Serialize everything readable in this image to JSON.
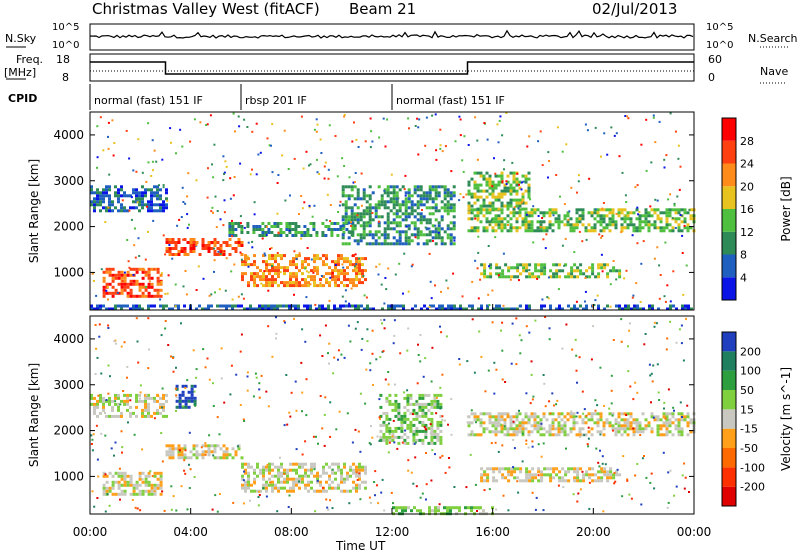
{
  "header": {
    "station": "Christmas Valley West (fitACF)",
    "beam": "Beam 21",
    "date": "02/Jul/2013"
  },
  "labels": {
    "nsky": "N.Sky",
    "nsearch": "N.Search",
    "freq": "Freq.",
    "freq_unit": "[MHz]",
    "nave": "Nave",
    "cpid": "CPID",
    "nsky_ticks": [
      "10^5",
      "10^0"
    ],
    "freq_ticks": [
      "18",
      "8"
    ],
    "nave_ticks": [
      "60",
      "0"
    ]
  },
  "cpid_segments": [
    {
      "name": "normal (fast) 151 IF"
    },
    {
      "name": "rbsp 201 IF"
    },
    {
      "name": "normal (fast) 151 IF"
    }
  ],
  "chart_data": [
    {
      "type": "heatmap",
      "title": "",
      "xlabel": "Time UT",
      "ylabel": "Slant Range [km]",
      "x_ticks": [
        "00:00",
        "04:00",
        "08:00",
        "12:00",
        "16:00",
        "20:00",
        "00:00"
      ],
      "y_ticks": [
        "1000",
        "2000",
        "3000",
        "4000"
      ],
      "xlim_hours": [
        0,
        24
      ],
      "ylim_km": [
        180,
        4500
      ],
      "colorbar": {
        "label": "Power [dB]",
        "ticks": [
          "4",
          "8",
          "12",
          "16",
          "20",
          "24",
          "28"
        ],
        "colors": [
          "#0a14e6",
          "#1f5fbf",
          "#2e8b57",
          "#4fbf3f",
          "#e8c21f",
          "#ff8c1a",
          "#ff4010",
          "#ff0000"
        ]
      },
      "regions": [
        {
          "t0": 0.0,
          "t1": 3.0,
          "r0": 2350,
          "r1": 2900,
          "level": 1
        },
        {
          "t0": 3.0,
          "t1": 6.0,
          "r0": 1400,
          "r1": 1750,
          "level": 6
        },
        {
          "t0": 0.5,
          "t1": 2.8,
          "r0": 500,
          "r1": 1100,
          "level": 6
        },
        {
          "t0": 6.0,
          "t1": 11.0,
          "r0": 700,
          "r1": 1400,
          "level": 5
        },
        {
          "t0": 5.5,
          "t1": 10.5,
          "r0": 1800,
          "r1": 2100,
          "level": 2
        },
        {
          "t0": 10.0,
          "t1": 14.5,
          "r0": 1600,
          "r1": 2900,
          "level": 2
        },
        {
          "t0": 15.0,
          "t1": 24.0,
          "r0": 1900,
          "r1": 2400,
          "level": 3
        },
        {
          "t0": 15.0,
          "t1": 17.5,
          "r0": 2400,
          "r1": 3200,
          "level": 3
        },
        {
          "t0": 15.5,
          "t1": 21.0,
          "r0": 900,
          "r1": 1200,
          "level": 3
        },
        {
          "t0": 0.0,
          "t1": 24.0,
          "r0": 180,
          "r1": 300,
          "level": 1
        }
      ]
    },
    {
      "type": "heatmap",
      "title": "",
      "xlabel": "Time UT",
      "ylabel": "Slant Range [km]",
      "x_ticks": [
        "00:00",
        "04:00",
        "08:00",
        "12:00",
        "16:00",
        "20:00",
        "00:00"
      ],
      "y_ticks": [
        "1000",
        "2000",
        "3000",
        "4000"
      ],
      "xlim_hours": [
        0,
        24
      ],
      "ylim_km": [
        180,
        4500
      ],
      "colorbar": {
        "label": "Velocity [m s^-1]",
        "ticks": [
          "200",
          "100",
          "50",
          "15",
          "-15",
          "-50",
          "-100",
          "-200"
        ],
        "colors": [
          "#1f3fbf",
          "#1f7f5f",
          "#2e9f3f",
          "#7fcf3f",
          "#c8c8c0",
          "#ff9f1a",
          "#ff6a00",
          "#ff3000",
          "#e00000"
        ]
      },
      "regions": [
        {
          "t0": 0.0,
          "t1": 3.0,
          "r0": 2300,
          "r1": 2800,
          "level": 4
        },
        {
          "t0": 3.0,
          "t1": 6.0,
          "r0": 1400,
          "r1": 1700,
          "level": 4
        },
        {
          "t0": 0.5,
          "t1": 2.8,
          "r0": 600,
          "r1": 1100,
          "level": 4
        },
        {
          "t0": 6.0,
          "t1": 11.0,
          "r0": 700,
          "r1": 1300,
          "level": 4
        },
        {
          "t0": 3.4,
          "t1": 4.2,
          "r0": 2500,
          "r1": 3000,
          "level": 0
        },
        {
          "t0": 11.5,
          "t1": 14.0,
          "r0": 1700,
          "r1": 2800,
          "level": 3
        },
        {
          "t0": 15.0,
          "t1": 24.0,
          "r0": 1900,
          "r1": 2400,
          "level": 4
        },
        {
          "t0": 15.5,
          "t1": 21.0,
          "r0": 900,
          "r1": 1200,
          "level": 4
        },
        {
          "t0": 12.0,
          "t1": 16.0,
          "r0": 180,
          "r1": 350,
          "level": 3
        }
      ]
    }
  ]
}
